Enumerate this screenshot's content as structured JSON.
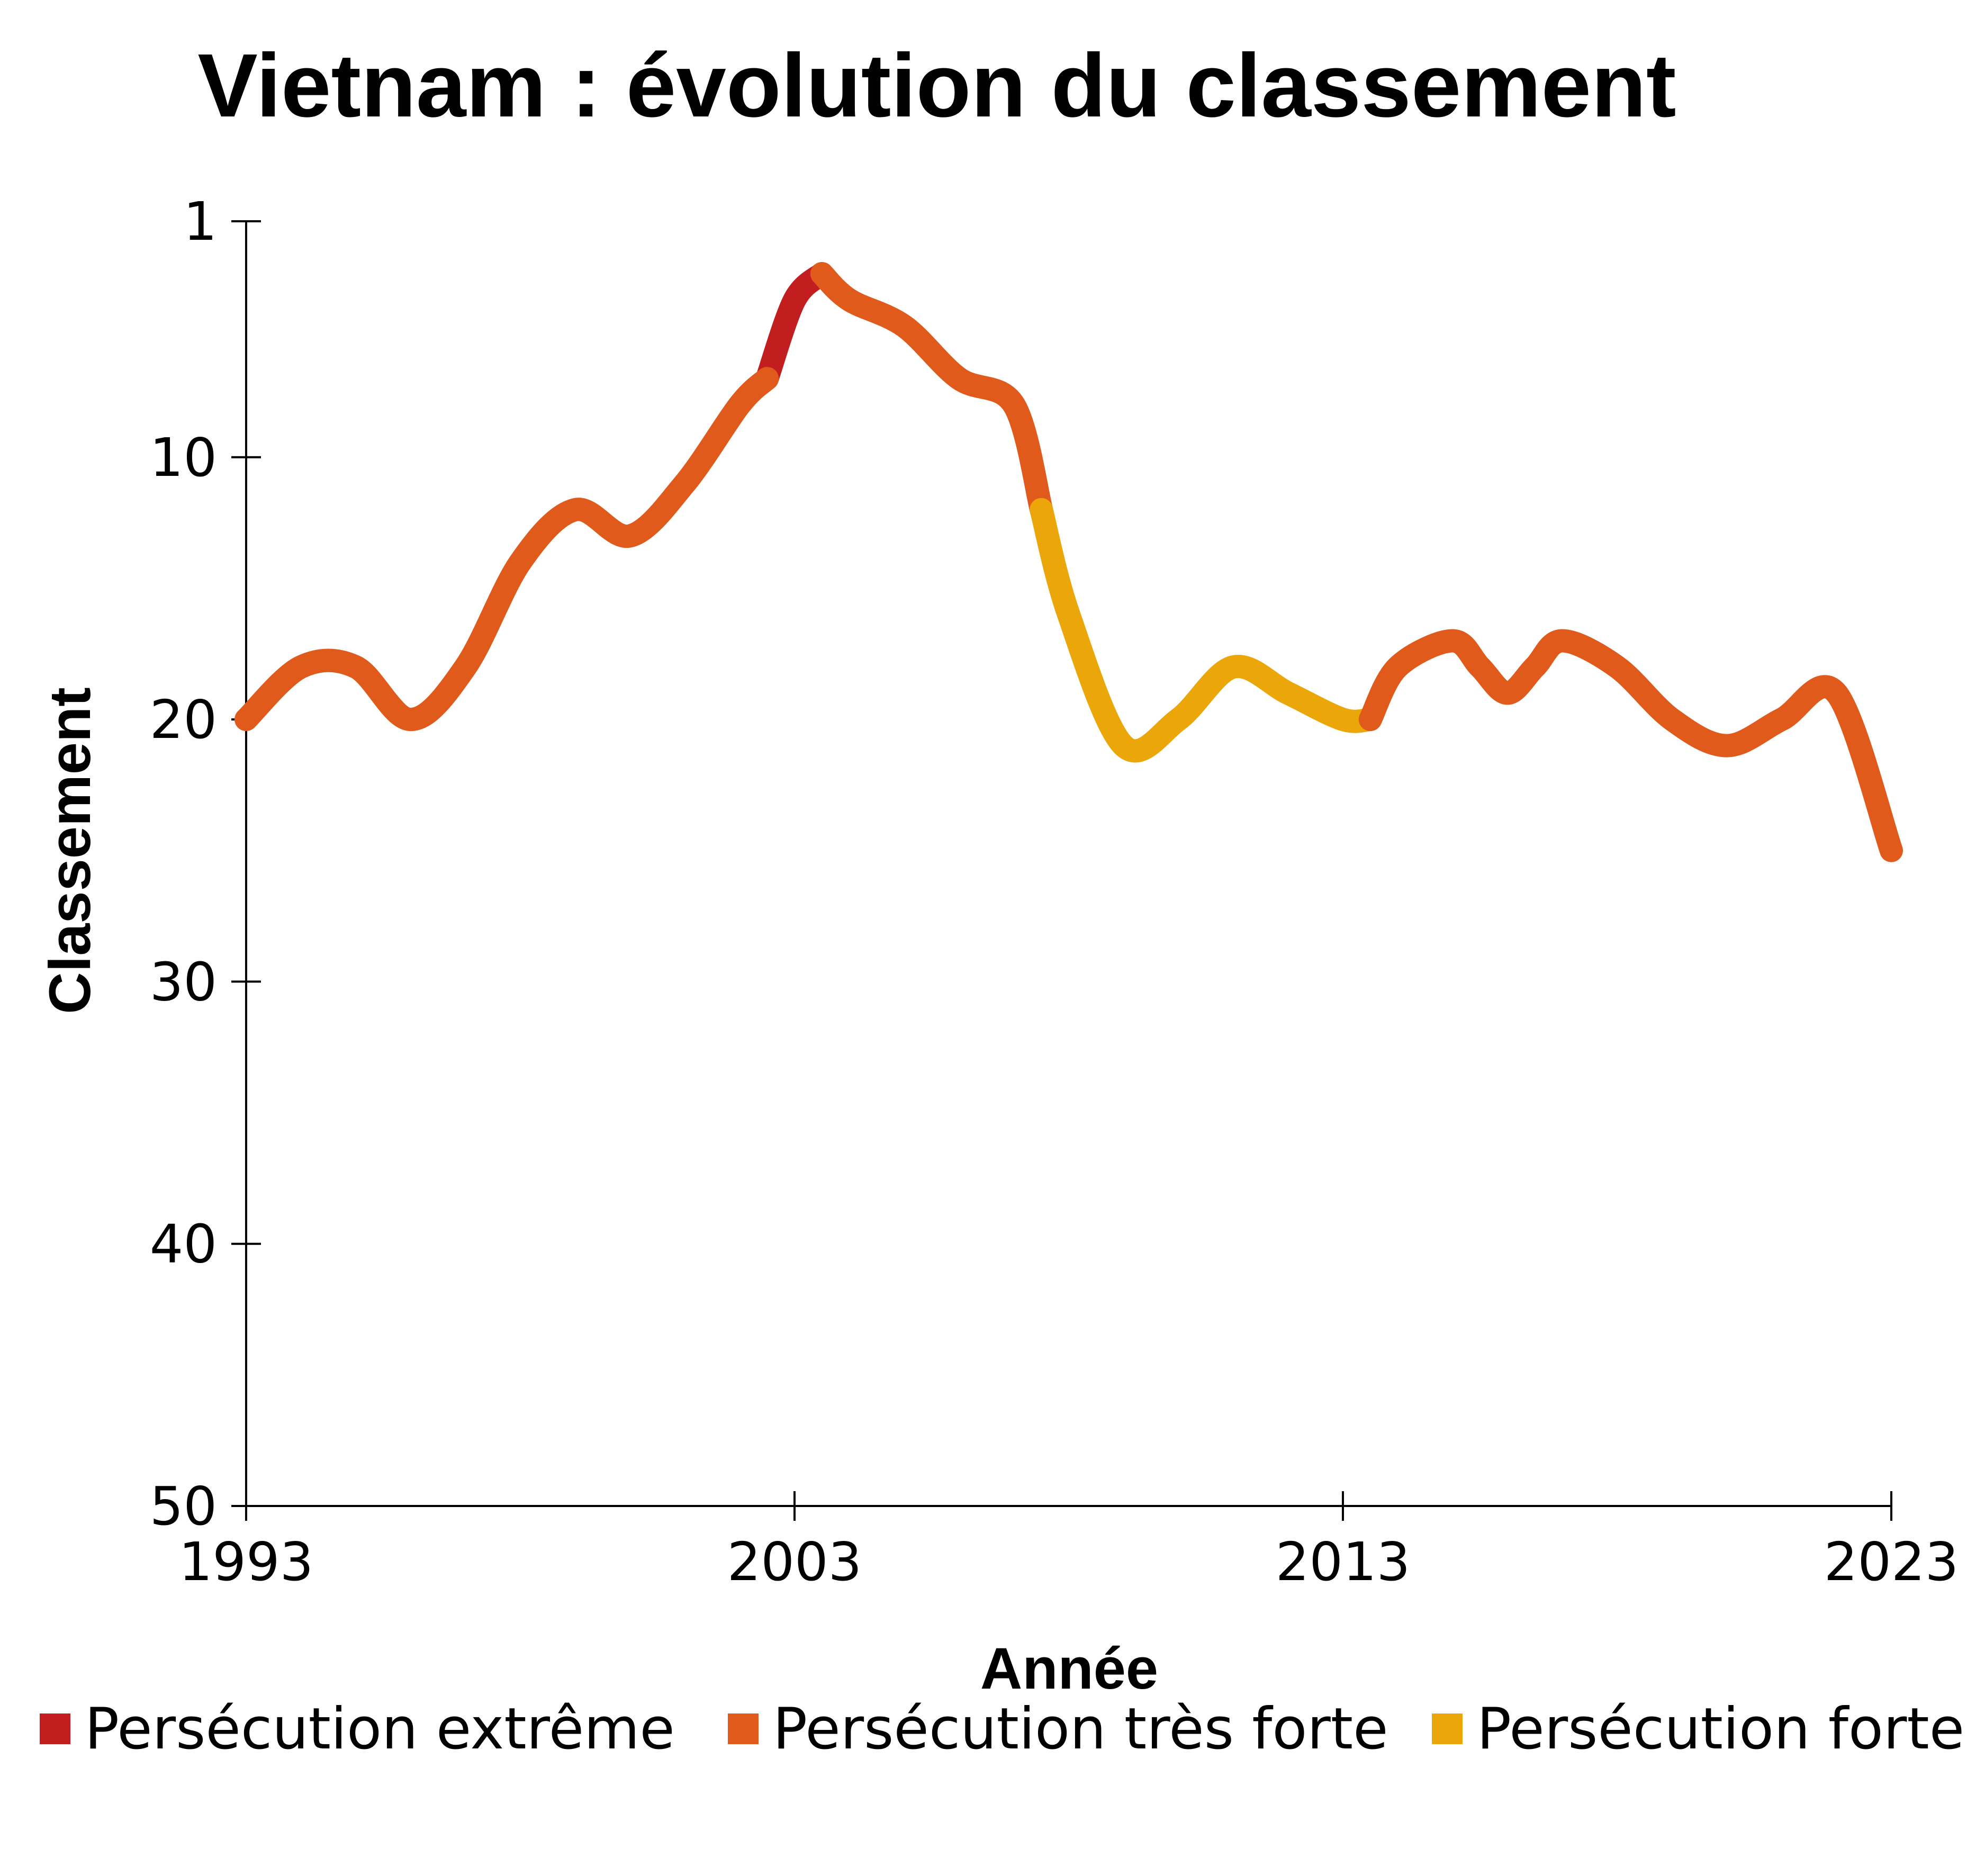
{
  "chart_data": {
    "type": "line",
    "title": "Vietnam : évolution du classement",
    "xlabel": "Année",
    "ylabel": "Classement",
    "xlim": [
      1993,
      2023
    ],
    "ylim": [
      1,
      50
    ],
    "y_inverted": true,
    "x_ticks": [
      "1993",
      "2003",
      "2013",
      "2023"
    ],
    "y_ticks": [
      "1",
      "10",
      "20",
      "30",
      "40",
      "50"
    ],
    "grid": false,
    "legend_position": "bottom",
    "series": [
      {
        "name": "Persécution extrême",
        "color": "#c21d1f",
        "x": [
          2002.5,
          2003,
          2003.5
        ],
        "y": [
          7,
          4,
          3
        ]
      },
      {
        "name": "Persécution très forte",
        "color": "#e05a1c",
        "x": [
          1993,
          1994,
          1995,
          1996,
          1997,
          1998,
          1999,
          2000,
          2001,
          2002,
          2002.5
        ],
        "y": [
          20,
          18,
          18,
          20,
          18,
          14,
          12,
          13,
          11,
          8,
          7
        ]
      },
      {
        "name": "Persécution très forte",
        "color": "#e05a1c",
        "x": [
          2003.5,
          2004,
          2005,
          2006,
          2007,
          2007.5
        ],
        "y": [
          3,
          4,
          5,
          7,
          8,
          12
        ]
      },
      {
        "name": "Persécution forte",
        "color": "#eba60a",
        "x": [
          2007.5,
          2008,
          2009,
          2010,
          2011,
          2012,
          2013,
          2013.5
        ],
        "y": [
          12,
          16,
          21,
          20,
          18,
          19,
          20,
          20
        ]
      },
      {
        "name": "Persécution très forte",
        "color": "#e05a1c",
        "x": [
          2013.5,
          2014,
          2015,
          2015.5,
          2016,
          2016.5,
          2017,
          2018,
          2019,
          2020,
          2021,
          2022,
          2023
        ],
        "y": [
          20,
          18,
          17,
          18,
          19,
          18,
          17,
          18,
          20,
          21,
          20,
          19,
          25
        ]
      }
    ],
    "legend": [
      {
        "label": "Persécution extrême",
        "color": "#c21d1f"
      },
      {
        "label": "Persécution très forte",
        "color": "#e05a1c"
      },
      {
        "label": "Persécution forte",
        "color": "#eba60a"
      }
    ]
  }
}
